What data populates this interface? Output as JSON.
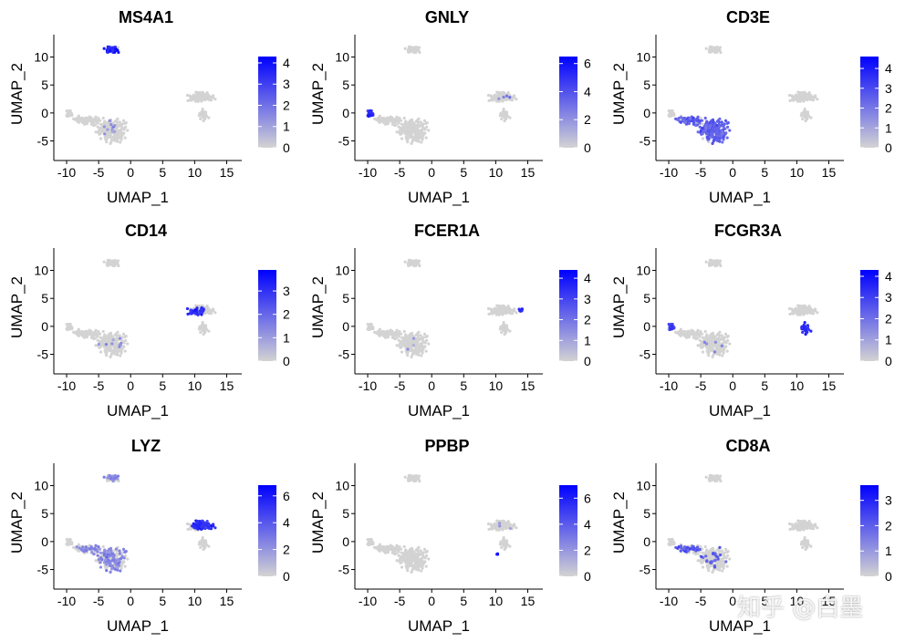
{
  "figure": {
    "type": "featureplot-grid",
    "x_axis_ticks": [
      -10,
      -5,
      0,
      5,
      10,
      15
    ],
    "y_axis_ticks": [
      -5,
      0,
      5,
      10
    ],
    "xlim": [
      -12,
      16.5
    ],
    "ylim": [
      -8.5,
      14
    ],
    "colors": {
      "low": "#d3d3d3",
      "high": "#0000ff"
    }
  },
  "chart_data": [
    {
      "type": "scatter",
      "title": "MS4A1",
      "xlabel": "UMAP_1",
      "ylabel": "UMAP_2",
      "legend": {
        "position": "right",
        "breaks": [
          0,
          1,
          2,
          3,
          4
        ],
        "max": 4.3
      },
      "hot": [
        {
          "cluster": "B",
          "level": 0.85,
          "frac": 0.95
        },
        {
          "cluster": "core",
          "level": 0.3,
          "frac": 0.03
        }
      ]
    },
    {
      "type": "scatter",
      "title": "GNLY",
      "xlabel": "UMAP_1",
      "ylabel": "UMAP_2",
      "legend": {
        "position": "right",
        "breaks": [
          0,
          2,
          4,
          6
        ],
        "max": 6.5
      },
      "hot": [
        {
          "cluster": "nk",
          "level": 0.8,
          "frac": 0.9
        },
        {
          "cluster": "mono",
          "level": 0.4,
          "frac": 0.04
        }
      ]
    },
    {
      "type": "scatter",
      "title": "CD3E",
      "xlabel": "UMAP_1",
      "ylabel": "UMAP_2",
      "legend": {
        "position": "right",
        "breaks": [
          0,
          1,
          2,
          3,
          4
        ],
        "max": 4.6
      },
      "hot": [
        {
          "cluster": "core",
          "level": 0.55,
          "frac": 0.9
        },
        {
          "cluster": "arm",
          "level": 0.55,
          "frac": 0.85
        }
      ]
    },
    {
      "type": "scatter",
      "title": "CD14",
      "xlabel": "UMAP_1",
      "ylabel": "UMAP_2",
      "legend": {
        "position": "right",
        "breaks": [
          0,
          1,
          2,
          3
        ],
        "max": 3.9
      },
      "hot": [
        {
          "cluster": "mono_left",
          "level": 0.8,
          "frac": 0.9
        },
        {
          "cluster": "core",
          "level": 0.35,
          "frac": 0.02
        }
      ]
    },
    {
      "type": "scatter",
      "title": "FCER1A",
      "xlabel": "UMAP_1",
      "ylabel": "UMAP_2",
      "legend": {
        "position": "right",
        "breaks": [
          0,
          1,
          2,
          3,
          4
        ],
        "max": 4.4
      },
      "hot": [
        {
          "cluster": "dc",
          "level": 0.8,
          "frac": 0.9
        },
        {
          "cluster": "core",
          "level": 0.35,
          "frac": 0.02
        }
      ]
    },
    {
      "type": "scatter",
      "title": "FCGR3A",
      "xlabel": "UMAP_1",
      "ylabel": "UMAP_2",
      "legend": {
        "position": "right",
        "breaks": [
          0,
          1,
          2,
          3,
          4
        ],
        "max": 4.3
      },
      "hot": [
        {
          "cluster": "mono_tail",
          "level": 0.8,
          "frac": 0.95
        },
        {
          "cluster": "nk",
          "level": 0.7,
          "frac": 0.85
        },
        {
          "cluster": "core",
          "level": 0.4,
          "frac": 0.02
        }
      ]
    },
    {
      "type": "scatter",
      "title": "LYZ",
      "xlabel": "UMAP_1",
      "ylabel": "UMAP_2",
      "legend": {
        "position": "right",
        "breaks": [
          0,
          2,
          4,
          6
        ],
        "max": 6.8
      },
      "hot": [
        {
          "cluster": "mono",
          "level": 0.8,
          "frac": 0.95
        },
        {
          "cluster": "core",
          "level": 0.35,
          "frac": 0.4
        },
        {
          "cluster": "arm",
          "level": 0.35,
          "frac": 0.4
        },
        {
          "cluster": "B",
          "level": 0.35,
          "frac": 0.4
        }
      ]
    },
    {
      "type": "scatter",
      "title": "PPBP",
      "xlabel": "UMAP_1",
      "ylabel": "UMAP_2",
      "legend": {
        "position": "right",
        "breaks": [
          0,
          2,
          4,
          6
        ],
        "max": 7
      },
      "hot": [
        {
          "cluster": "platelet",
          "level": 0.9,
          "frac": 1.0
        },
        {
          "cluster": "mono",
          "level": 0.3,
          "frac": 0.02
        }
      ]
    },
    {
      "type": "scatter",
      "title": "CD8A",
      "xlabel": "UMAP_1",
      "ylabel": "UMAP_2",
      "legend": {
        "position": "right",
        "breaks": [
          0,
          1,
          2,
          3
        ],
        "max": 3.6
      },
      "hot": [
        {
          "cluster": "arm",
          "level": 0.6,
          "frac": 0.45
        },
        {
          "cluster": "core",
          "level": 0.55,
          "frac": 0.08
        }
      ]
    }
  ],
  "watermark": "知乎 @白墨"
}
